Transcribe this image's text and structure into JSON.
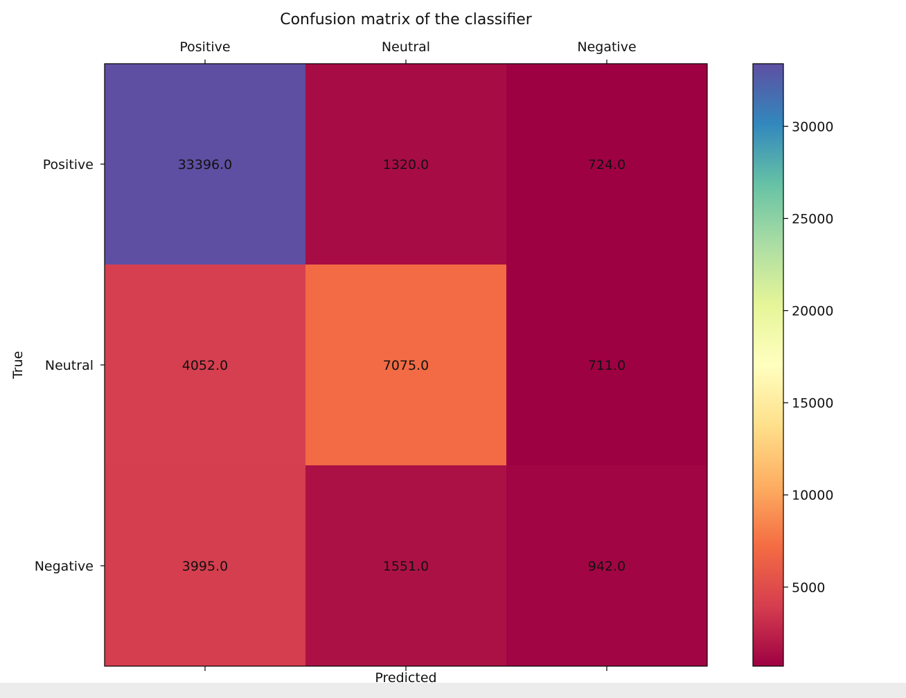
{
  "chart_data": {
    "type": "heatmap",
    "title": "Confusion matrix of the classifier",
    "xlabel": "Predicted",
    "ylabel": "True",
    "x_categories": [
      "Positive",
      "Neutral",
      "Negative"
    ],
    "y_categories": [
      "Positive",
      "Neutral",
      "Negative"
    ],
    "values": [
      [
        33396.0,
        1320.0,
        724.0
      ],
      [
        4052.0,
        7075.0,
        711.0
      ],
      [
        3995.0,
        1551.0,
        942.0
      ]
    ],
    "cell_labels": [
      [
        "33396.0",
        "1320.0",
        "724.0"
      ],
      [
        "4052.0",
        "7075.0",
        "711.0"
      ],
      [
        "3995.0",
        "1551.0",
        "942.0"
      ]
    ],
    "colormap": "Spectral",
    "colorbar": {
      "min": 711,
      "max": 33396,
      "ticks": [
        5000,
        10000,
        15000,
        20000,
        25000,
        30000
      ],
      "tick_labels": [
        "5000",
        "10000",
        "15000",
        "20000",
        "25000",
        "30000"
      ]
    },
    "x_tick_position": "top",
    "grid": false,
    "legend": "colorbar-right"
  },
  "colors": {
    "spectral_stops": [
      "#9e0142",
      "#d53e4f",
      "#f46d43",
      "#fdae61",
      "#fee08b",
      "#ffffbf",
      "#e6f598",
      "#abdda4",
      "#66c2a5",
      "#3288bd",
      "#5e4fa2"
    ]
  }
}
